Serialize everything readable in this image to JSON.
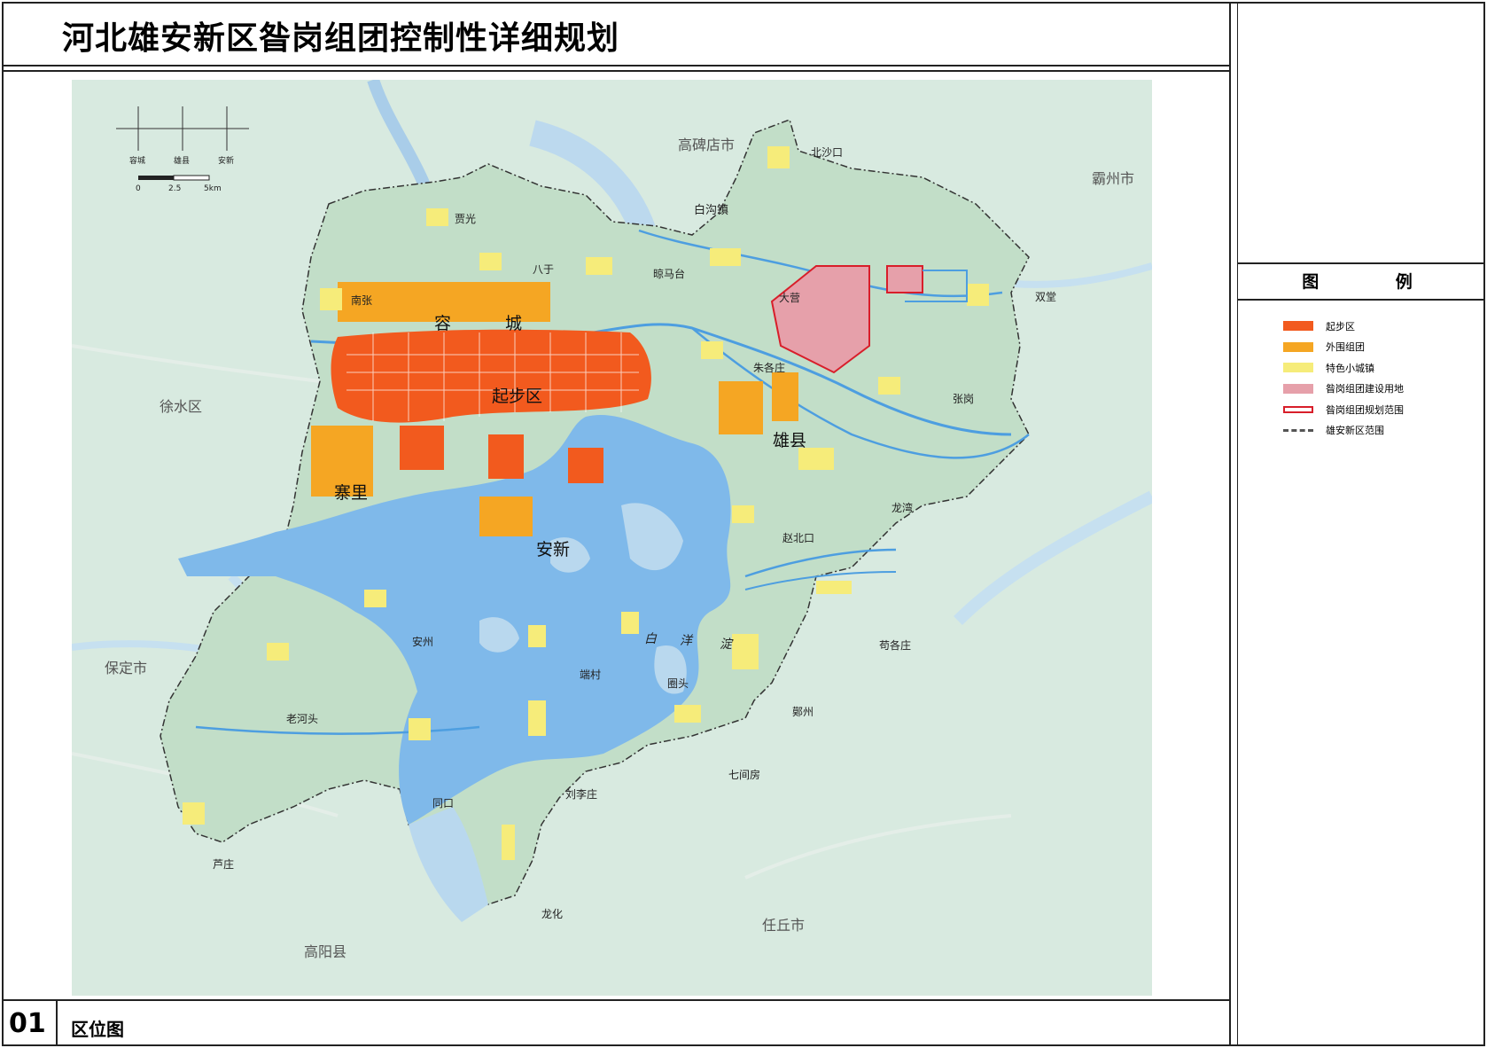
{
  "title": "河北雄安新区昝岗组团控制性详细规划",
  "sheet": {
    "number": "01",
    "name": "区位图"
  },
  "legend": {
    "heading": "图  例",
    "items": [
      {
        "label": "起步区",
        "color": "#f25a1e",
        "kind": "fill"
      },
      {
        "label": "外围组团",
        "color": "#f5a623",
        "kind": "fill"
      },
      {
        "label": "特色小城镇",
        "color": "#f6ec7a",
        "kind": "fill"
      },
      {
        "label": "昝岗组团建设用地",
        "color": "#e6a0aa",
        "kind": "fill"
      },
      {
        "label": "昝岗组团规划范围",
        "color": "#d81e2a",
        "kind": "line"
      },
      {
        "label": "雄安新区范围",
        "color": "#555555",
        "kind": "dashdot"
      }
    ]
  },
  "compass": [
    "容城",
    "雄县",
    "安新"
  ],
  "scale_bar": {
    "ticks": [
      "0",
      "2.5",
      "5km"
    ]
  },
  "map_labels": {
    "big": [
      "容",
      "城",
      "起步区",
      "雄县",
      "寨里",
      "安新"
    ],
    "outer": [
      "高碑店市",
      "霸州市",
      "徐水区",
      "保定市",
      "高阳县",
      "任丘市",
      "白沟镇"
    ],
    "towns": [
      "北沙口",
      "贾光",
      "八于",
      "晾马台",
      "大营",
      "双堂",
      "南张",
      "朱各庄",
      "张岗",
      "龙湾",
      "赵北口",
      "苟各庄",
      "安州",
      "端村",
      "圈头",
      "鄚州",
      "老河头",
      "七间房",
      "同口",
      "刘李庄",
      "芦庄",
      "龙化"
    ],
    "lake": [
      "白",
      "洋",
      "淀"
    ]
  },
  "colors": {
    "background": "#d8eae0",
    "new_area": "#c2dec8",
    "water": "#7fb9ea",
    "water_light": "#b9d8ee",
    "start_zone": "#f25a1e",
    "outer_group": "#f5a623",
    "town": "#f6ec7a",
    "zangang": "#e6a0aa",
    "boundary_red": "#d81e2a"
  }
}
